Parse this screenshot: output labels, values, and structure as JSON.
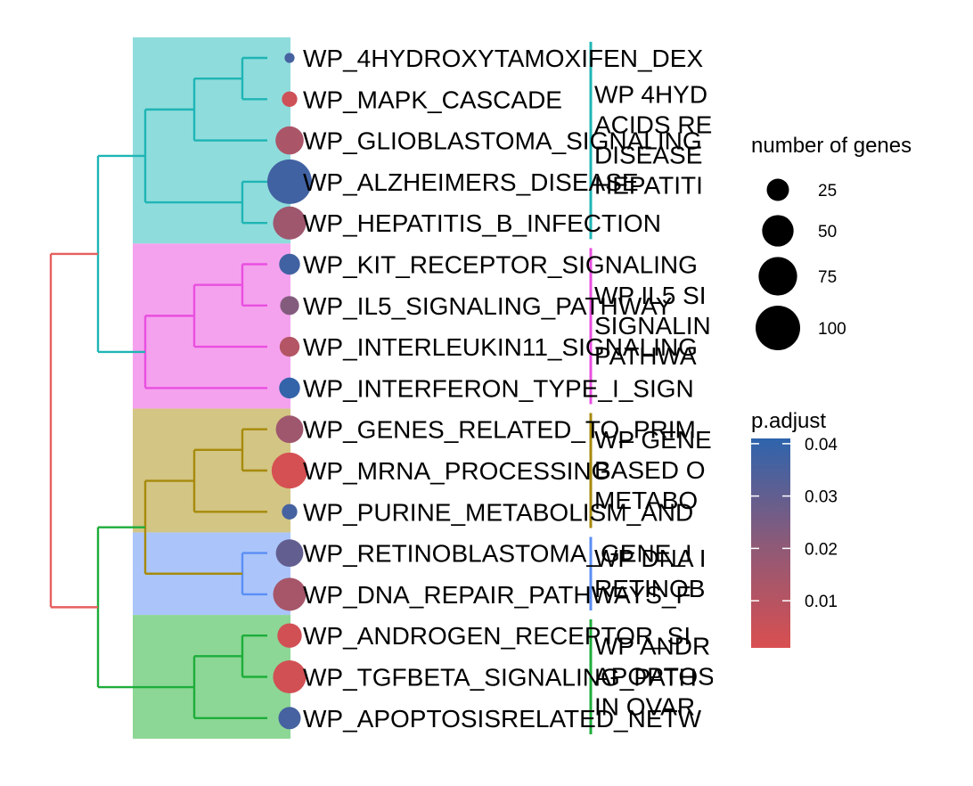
{
  "chart_data": {
    "type": "scatter",
    "subtype": "clustered-dendrogram-dotplot",
    "terms": [
      {
        "label": "WP_4HYDROXYTAMOXIFEN_DEX",
        "count": 5,
        "p_adjust": 0.036,
        "cluster": 0
      },
      {
        "label": "WP_MAPK_CASCADE",
        "count": 12,
        "p_adjust": 0.004,
        "cluster": 0
      },
      {
        "label": "WP_GLIOBLASTOMA_SIGNALING",
        "count": 40,
        "p_adjust": 0.013,
        "cluster": 0
      },
      {
        "label": "WP_ALZHEIMERS_DISEASE",
        "count": 100,
        "p_adjust": 0.037,
        "cluster": 0
      },
      {
        "label": "WP_HEPATITIS_B_INFECTION",
        "count": 55,
        "p_adjust": 0.016,
        "cluster": 0
      },
      {
        "label": "WP_KIT_RECEPTOR_SIGNALING",
        "count": 22,
        "p_adjust": 0.037,
        "cluster": 1
      },
      {
        "label": "WP_IL5_SIGNALING_PATHWAY",
        "count": 18,
        "p_adjust": 0.023,
        "cluster": 1
      },
      {
        "label": "WP_INTERLEUKIN11_SIGNALING",
        "count": 20,
        "p_adjust": 0.011,
        "cluster": 1
      },
      {
        "label": "WP_INTERFERON_TYPE_I_SIGN",
        "count": 22,
        "p_adjust": 0.04,
        "cluster": 1
      },
      {
        "label": "WP_GENES_RELATED_TO_PRIM",
        "count": 38,
        "p_adjust": 0.016,
        "cluster": 2
      },
      {
        "label": "WP_MRNA_PROCESSING",
        "count": 65,
        "p_adjust": 0.002,
        "cluster": 2
      },
      {
        "label": "WP_PURINE_METABOLISM_AND",
        "count": 12,
        "p_adjust": 0.036,
        "cluster": 2
      },
      {
        "label": "WP_RETINOBLASTOMA_GENE_I",
        "count": 38,
        "p_adjust": 0.03,
        "cluster": 3
      },
      {
        "label": "WP_DNA_REPAIR_PATHWAYS_F",
        "count": 55,
        "p_adjust": 0.014,
        "cluster": 3
      },
      {
        "label": "WP_ANDROGEN_RECEPTOR_SI",
        "count": 30,
        "p_adjust": 0.003,
        "cluster": 4
      },
      {
        "label": "WP_TGFBETA_SIGNALING_PATH",
        "count": 55,
        "p_adjust": 0.003,
        "cluster": 4
      },
      {
        "label": "WP_APOPTOSISRELATED_NETW",
        "count": 25,
        "p_adjust": 0.036,
        "cluster": 4
      }
    ],
    "clusters": [
      {
        "color": "#1fb5b5",
        "fill": "#8fdcdc",
        "label_lines": [
          "WP 4HYD",
          "ACIDS RE",
          "DISEASE",
          "HEPATITI"
        ]
      },
      {
        "color": "#e94fe0",
        "fill": "#f5a2ee",
        "label_lines": [
          "WP IL5 SI",
          "SIGNALIN",
          "PATHWA"
        ]
      },
      {
        "color": "#a68a0c",
        "fill": "#d3c583",
        "label_lines": [
          "WP GENE",
          "BASED O",
          "METABO"
        ]
      },
      {
        "color": "#5b8ef5",
        "fill": "#abc5fa",
        "label_lines": [
          "WP DNA I",
          "RETINOB"
        ]
      },
      {
        "color": "#1ead3b",
        "fill": "#8cd795",
        "label_lines": [
          "WP ANDR",
          "APOPTOS",
          "IN OVAR"
        ]
      }
    ],
    "root_color": "#e5605d",
    "size_legend": {
      "title": "number of genes",
      "values": [
        25,
        50,
        75,
        100
      ]
    },
    "color_legend": {
      "title": "p.adjust",
      "ticks": [
        "0.04",
        "0.03",
        "0.02",
        "0.01"
      ],
      "range": [
        0.001,
        0.041
      ],
      "low_color": "#d94f50",
      "high_color": "#2e64ad"
    }
  }
}
